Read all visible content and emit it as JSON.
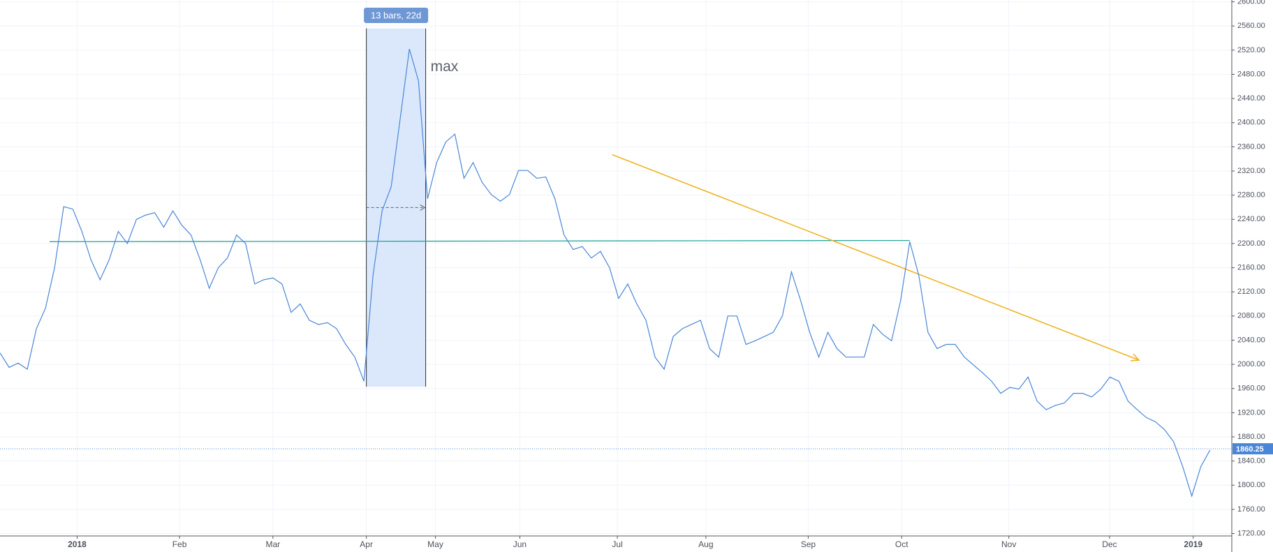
{
  "chart_data": {
    "type": "line",
    "color": "#4a86d8",
    "values": [
      2019,
      1995,
      2002,
      1992,
      2059,
      2093,
      2160,
      2261,
      2257,
      2220,
      2173,
      2140,
      2173,
      2220,
      2200,
      2240,
      2247,
      2251,
      2227,
      2254,
      2230,
      2214,
      2173,
      2126,
      2160,
      2176,
      2214,
      2200,
      2133,
      2140,
      2143,
      2133,
      2086,
      2100,
      2073,
      2066,
      2069,
      2059,
      2033,
      2012,
      1972,
      2147,
      2254,
      2294,
      2408,
      2522,
      2469,
      2274,
      2334,
      2368,
      2381,
      2308,
      2334,
      2301,
      2281,
      2270,
      2281,
      2321,
      2321,
      2308,
      2310,
      2274,
      2214,
      2190,
      2195,
      2176,
      2187,
      2160,
      2109,
      2133,
      2100,
      2073,
      2012,
      1992,
      2046,
      2059,
      2066,
      2073,
      2026,
      2012,
      2080,
      2080,
      2033,
      2039,
      2046,
      2053,
      2080,
      2153,
      2106,
      2053,
      2012,
      2053,
      2026,
      2012,
      2012,
      2012,
      2066,
      2050,
      2039,
      2106,
      2203,
      2147,
      2053,
      2026,
      2033,
      2033,
      2012,
      1999,
      1986,
      1972,
      1952,
      1962,
      1959,
      1979,
      1939,
      1925,
      1932,
      1936,
      1952,
      1952,
      1946,
      1959,
      1979,
      1972,
      1939,
      1925,
      1912,
      1905,
      1892,
      1872,
      1831,
      1782,
      1831,
      1858
    ],
    "xlim": [
      0,
      135.4
    ],
    "ylim": [
      1716,
      2603
    ],
    "xticks": [
      {
        "value": 8.48,
        "label": "2018"
      },
      {
        "value": 19.73,
        "label": "Feb"
      },
      {
        "value": 30,
        "label": "Mar"
      },
      {
        "value": 40.27,
        "label": "Apr"
      },
      {
        "value": 47.86,
        "label": "May"
      },
      {
        "value": 57.14,
        "label": "Jun"
      },
      {
        "value": 67.86,
        "label": "Jul"
      },
      {
        "value": 77.59,
        "label": "Aug"
      },
      {
        "value": 88.84,
        "label": "Sep"
      },
      {
        "value": 99.11,
        "label": "Oct"
      },
      {
        "value": 110.89,
        "label": "Nov"
      },
      {
        "value": 121.96,
        "label": "Dec"
      },
      {
        "value": 131.16,
        "label": "2019"
      }
    ],
    "yticks": [
      {
        "value": 1720,
        "label": "1720.00"
      },
      {
        "value": 1760,
        "label": "1760.00"
      },
      {
        "value": 1800,
        "label": "1800.00"
      },
      {
        "value": 1840,
        "label": "1840.00"
      },
      {
        "value": 1880,
        "label": "1880.00"
      },
      {
        "value": 1920,
        "label": "1920.00"
      },
      {
        "value": 1960,
        "label": "1960.00"
      },
      {
        "value": 2000,
        "label": "2000.00"
      },
      {
        "value": 2040,
        "label": "2040.00"
      },
      {
        "value": 2080,
        "label": "2080.00"
      },
      {
        "value": 2120,
        "label": "2120.00"
      },
      {
        "value": 2160,
        "label": "2160.00"
      },
      {
        "value": 2200,
        "label": "2200.00"
      },
      {
        "value": 2240,
        "label": "2240.00"
      },
      {
        "value": 2280,
        "label": "2280.00"
      },
      {
        "value": 2320,
        "label": "2320.00"
      },
      {
        "value": 2360,
        "label": "2360.00"
      },
      {
        "value": 2400,
        "label": "2400.00"
      },
      {
        "value": 2440,
        "label": "2440.00"
      },
      {
        "value": 2480,
        "label": "2480.00"
      },
      {
        "value": 2520,
        "label": "2520.00"
      },
      {
        "value": 2560,
        "label": "2560.00"
      },
      {
        "value": 2600,
        "label": "2600.00"
      }
    ],
    "grid": true,
    "last_price": 1860.25,
    "range": {
      "label": "13 bars, 22d",
      "x": [
        40.27,
        46.79
      ],
      "y": [
        1963,
        2556
      ],
      "color": "#dbe8fb"
    },
    "max_label": "max",
    "level_line": {
      "x": [
        5.45,
        100
      ],
      "y": [
        2203,
        2205
      ],
      "color": "#26a69a"
    },
    "trend_arrow": {
      "x": [
        67.3,
        125.2
      ],
      "y": [
        2347,
        2007
      ],
      "color": "#f0b323"
    }
  }
}
